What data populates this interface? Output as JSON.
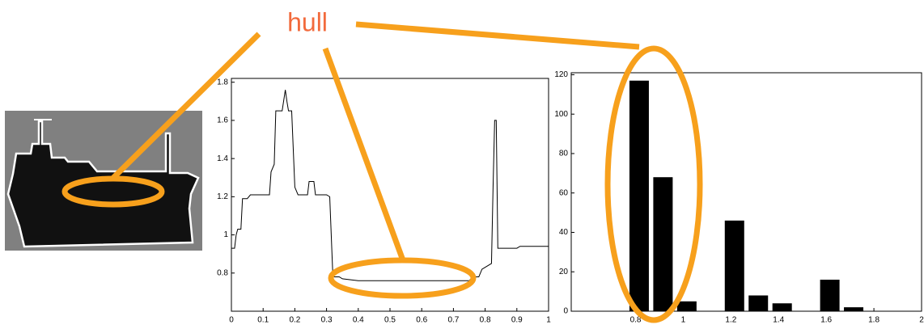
{
  "annotation": "hull",
  "chart_data": [
    {
      "type": "line",
      "color": "#000000",
      "x": [
        0,
        0.01,
        0.015,
        0.02,
        0.03,
        0.035,
        0.05,
        0.06,
        0.12,
        0.125,
        0.135,
        0.14,
        0.16,
        0.17,
        0.175,
        0.18,
        0.19,
        0.2,
        0.21,
        0.24,
        0.245,
        0.26,
        0.265,
        0.3,
        0.31,
        0.32,
        0.34,
        0.35,
        0.4,
        0.75,
        0.76,
        0.78,
        0.79,
        0.8,
        0.82,
        0.825,
        0.83,
        0.835,
        0.84,
        0.9,
        0.91,
        1.0
      ],
      "values": [
        0.93,
        0.93,
        1.0,
        1.03,
        1.03,
        1.19,
        1.19,
        1.21,
        1.21,
        1.33,
        1.37,
        1.65,
        1.65,
        1.76,
        1.7,
        1.65,
        1.65,
        1.25,
        1.21,
        1.21,
        1.28,
        1.28,
        1.21,
        1.21,
        1.2,
        0.78,
        0.78,
        0.77,
        0.76,
        0.76,
        0.78,
        0.78,
        0.82,
        0.83,
        0.85,
        1.25,
        1.6,
        1.6,
        0.93,
        0.93,
        0.94,
        0.94
      ],
      "xlim": [
        0,
        1
      ],
      "xticks": [
        0,
        0.1,
        0.2,
        0.3,
        0.4,
        0.5,
        0.6,
        0.7,
        0.8,
        0.9,
        1
      ],
      "ylim": [
        0.6,
        1.82
      ],
      "yticks": [
        0.8,
        1,
        1.2,
        1.4,
        1.6,
        1.8
      ]
    },
    {
      "type": "bar",
      "color": "#000000",
      "x": [
        0.815,
        0.915,
        1.015,
        1.215,
        1.315,
        1.415,
        1.615,
        1.715
      ],
      "values": [
        117,
        68,
        5,
        46,
        8,
        4,
        16,
        2
      ],
      "xlim": [
        0.53,
        2
      ],
      "xticks": [
        0.8,
        1,
        1.2,
        1.4,
        1.6,
        1.8,
        2
      ],
      "ylim": [
        0,
        121
      ],
      "yticks": [
        0,
        20,
        40,
        60,
        80,
        100,
        120
      ]
    }
  ]
}
